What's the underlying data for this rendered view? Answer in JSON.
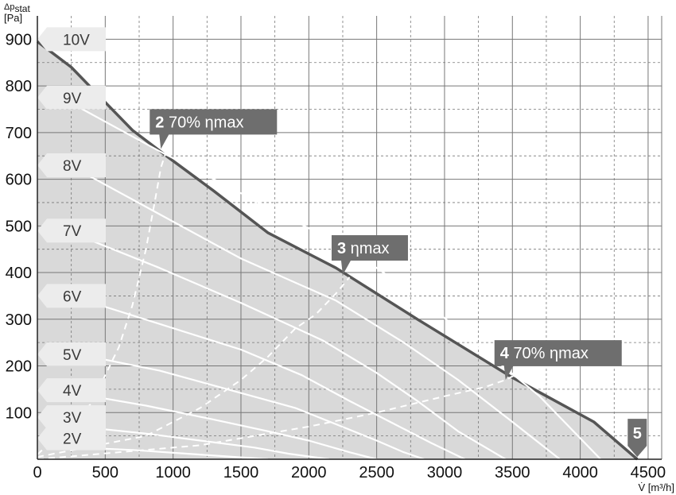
{
  "chart_data": {
    "type": "line",
    "ylabel_top": "Δp",
    "ylabel_sub": "stat",
    "ylabel_unit": "[Pa]",
    "xlabel": "V̇ [m³/h]",
    "xlim": [
      0,
      4600
    ],
    "ylim": [
      0,
      950
    ],
    "x_ticks": [
      "0",
      "500",
      "1000",
      "1500",
      "2000",
      "2500",
      "3000",
      "3500",
      "4000",
      "4500"
    ],
    "y_ticks": [
      "100",
      "200",
      "300",
      "400",
      "500",
      "600",
      "700",
      "800",
      "900"
    ],
    "grid": true,
    "envelope": {
      "x": [
        0,
        250,
        500,
        700,
        950,
        1300,
        1700,
        2200,
        2800,
        3500,
        4100,
        4420
      ],
      "y": [
        895,
        840,
        765,
        705,
        650,
        575,
        485,
        410,
        300,
        175,
        80,
        0
      ]
    },
    "series": [
      {
        "name": "10V",
        "label_y": 900,
        "x": [
          0,
          250,
          500,
          700,
          950,
          1300,
          1700,
          2200,
          2800,
          3500,
          4100,
          4420
        ],
        "y": [
          895,
          840,
          765,
          705,
          650,
          575,
          485,
          410,
          300,
          175,
          80,
          0
        ]
      },
      {
        "name": "9V",
        "label_y": 775,
        "x": [
          300,
          900,
          1500,
          2300,
          2800,
          3200,
          3700,
          4150
        ],
        "y": [
          755,
          660,
          570,
          450,
          350,
          255,
          135,
          0
        ]
      },
      {
        "name": "8V",
        "label_y": 630,
        "x": [
          300,
          900,
          1500,
          2200,
          2700,
          3100,
          3500,
          3850
        ],
        "y": [
          620,
          525,
          430,
          340,
          250,
          170,
          80,
          0
        ]
      },
      {
        "name": "7V",
        "label_y": 490,
        "x": [
          300,
          900,
          1500,
          2100,
          2500,
          2800,
          3100,
          3450
        ],
        "y": [
          480,
          410,
          335,
          255,
          185,
          125,
          60,
          0
        ]
      },
      {
        "name": "6V",
        "label_y": 350,
        "x": [
          300,
          900,
          1500,
          1950,
          2300,
          2600,
          2900,
          3150
        ],
        "y": [
          345,
          290,
          235,
          180,
          125,
          80,
          35,
          0
        ]
      },
      {
        "name": "5V",
        "label_y": 225,
        "x": [
          300,
          900,
          1400,
          1900,
          2200,
          2500,
          2700,
          2850
        ],
        "y": [
          225,
          190,
          150,
          110,
          75,
          40,
          15,
          0
        ]
      },
      {
        "name": "4V",
        "label_y": 148,
        "x": [
          300,
          800,
          1300,
          1700,
          2000,
          2300,
          2500
        ],
        "y": [
          140,
          115,
          85,
          60,
          40,
          15,
          0
        ]
      },
      {
        "name": "3V",
        "label_y": 90,
        "x": [
          300,
          800,
          1200,
          1600,
          1850,
          2150
        ],
        "y": [
          70,
          55,
          40,
          25,
          12,
          0
        ]
      },
      {
        "name": "2V",
        "label_y": 45,
        "x": [
          300,
          700,
          1100,
          1400,
          1700
        ],
        "y": [
          25,
          20,
          12,
          6,
          0
        ]
      }
    ],
    "dashed_lines": [
      {
        "x": [
          0,
          400,
          600,
          700,
          800,
          870,
          910,
          950
        ],
        "y": [
          10,
          120,
          240,
          330,
          450,
          560,
          625,
          660
        ]
      },
      {
        "x": [
          0,
          800,
          1200,
          1500,
          1700,
          1900,
          2050,
          2200,
          2300
        ],
        "y": [
          5,
          50,
          110,
          170,
          220,
          280,
          310,
          355,
          390
        ]
      },
      {
        "x": [
          0,
          1200,
          2000,
          2500,
          3000,
          3300,
          3450,
          3550
        ],
        "y": [
          0,
          30,
          70,
          100,
          135,
          155,
          170,
          185
        ]
      }
    ],
    "points": [
      {
        "num": "2",
        "text": "70% ηmax",
        "x": 910,
        "y": 665
      },
      {
        "num": "3",
        "text": "ηmax",
        "x": 2250,
        "y": 395
      },
      {
        "num": "4",
        "text": "70% ηmax",
        "x": 3450,
        "y": 170
      },
      {
        "num": "5",
        "text": "",
        "x": 4420,
        "y": 5
      }
    ],
    "colors": {
      "shade": "#d9d9d9",
      "grid": "#777777",
      "outline": "#555555",
      "curve": "#ffffff",
      "badge": "#6e6e6e",
      "vtag": "#ececec"
    }
  }
}
